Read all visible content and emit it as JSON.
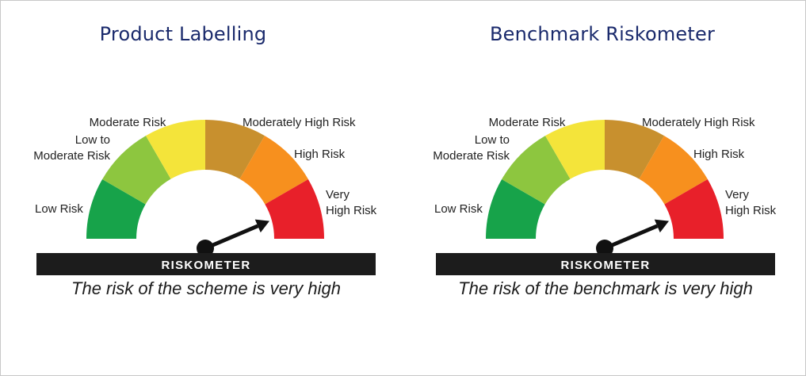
{
  "panels": [
    {
      "title": "Product Labelling",
      "meter_label": "RISKOMETER",
      "caption": "The risk of the scheme is very high",
      "needle_level": "Very High Risk"
    },
    {
      "title": "Benchmark Riskometer",
      "meter_label": "RISKOMETER",
      "caption": "The risk of the benchmark is very high",
      "needle_level": "Very High Risk"
    }
  ],
  "risk_levels": [
    {
      "lines": [
        "Low Risk"
      ],
      "color": "#17a34a"
    },
    {
      "lines": [
        "Low to",
        "Moderate Risk"
      ],
      "color": "#8dc63f"
    },
    {
      "lines": [
        "Moderate Risk"
      ],
      "color": "#f4e43a"
    },
    {
      "lines": [
        "Moderately High Risk"
      ],
      "color": "#c8902e"
    },
    {
      "lines": [
        "High Risk"
      ],
      "color": "#f7901e"
    },
    {
      "lines": [
        "Very",
        "High Risk"
      ],
      "color": "#e8202a"
    }
  ]
}
